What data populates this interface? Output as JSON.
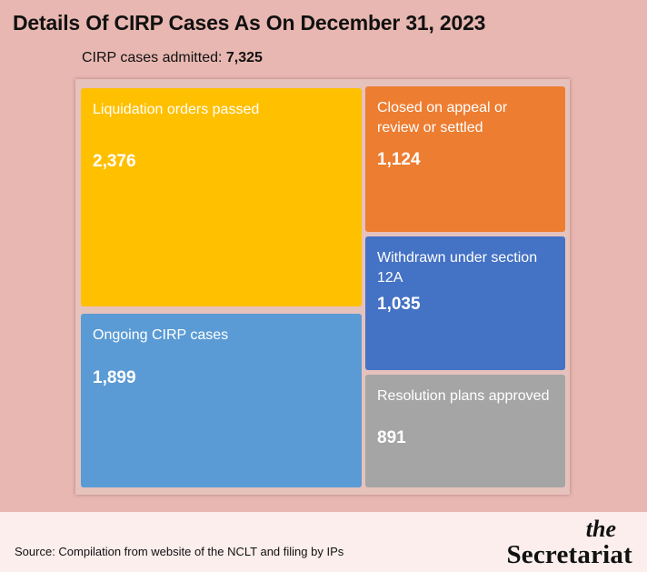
{
  "title": "Details Of CIRP Cases As On December 31, 2023",
  "subtitle": {
    "label": "CIRP cases admitted: ",
    "value": "7,325"
  },
  "chart_data": {
    "type": "treemap",
    "total_label": "CIRP cases admitted",
    "total": 7325,
    "items": [
      {
        "label": "Liquidation orders passed",
        "value": 2376,
        "display": "2,376",
        "color": "#ffc000"
      },
      {
        "label": "Ongoing CIRP cases",
        "value": 1899,
        "display": "1,899",
        "color": "#5b9bd5"
      },
      {
        "label": "Closed on appeal or review or settled",
        "value": 1124,
        "display": "1,124",
        "color": "#ed7d31"
      },
      {
        "label": "Withdrawn under section 12A",
        "value": 1035,
        "display": "1,035",
        "color": "#4472c4"
      },
      {
        "label": "Resolution plans approved",
        "value": 891,
        "display": "891",
        "color": "#a5a5a5"
      }
    ]
  },
  "footer": {
    "source": "Source: Compilation from website of the NCLT and filing by IPs",
    "brand_the": "the",
    "brand_name": "Secretariat"
  }
}
